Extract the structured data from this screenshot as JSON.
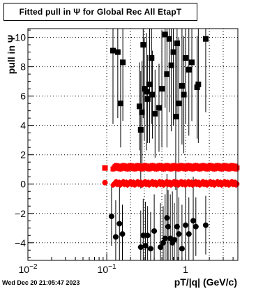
{
  "title": "Fitted pull in  Ψ  for Global Rec All EtapT",
  "xlabel": "pT/|q| (GeV/c)",
  "ylabel": "pull in  Ψ",
  "timestamp": "Wed Dec 20 21:05:47 2023",
  "chart_data": {
    "type": "scatter",
    "title": "Fitted pull in  Ψ  for Global Rec All EtapT",
    "xlabel": "pT/|q| (GeV/c)",
    "ylabel": "pull in  Ψ",
    "xscale": "log",
    "xlim": [
      0.01,
      4.6
    ],
    "ylim": [
      -5.2,
      10.6
    ],
    "xticks": [
      {
        "v": 0.01,
        "label": "10^-2"
      },
      {
        "v": 0.1,
        "label": "10^-1"
      },
      {
        "v": 1,
        "label": "1"
      }
    ],
    "yticks": [
      -4,
      -2,
      0,
      2,
      4,
      6,
      8,
      10
    ],
    "grid": true,
    "series": [
      {
        "marker": "square",
        "color": "#000000",
        "points": [
          [
            0.12,
            9.1,
            5.0
          ],
          [
            0.138,
            9.0,
            4.5
          ],
          [
            0.15,
            5.5,
            3.0
          ],
          [
            0.16,
            8.3,
            4.0
          ],
          [
            0.26,
            5.3,
            3.0
          ],
          [
            0.27,
            3.7,
            4.0
          ],
          [
            0.28,
            4.9,
            3.5
          ],
          [
            0.29,
            9.5,
            5.0
          ],
          [
            0.3,
            6.5,
            3.5
          ],
          [
            0.32,
            6.3,
            4.0
          ],
          [
            0.33,
            5.8,
            3.0
          ],
          [
            0.35,
            6.8,
            4.0
          ],
          [
            0.37,
            8.6,
            4.5
          ],
          [
            0.38,
            6.1,
            3.0
          ],
          [
            0.41,
            4.8,
            3.0
          ],
          [
            0.46,
            5.2,
            3.0
          ],
          [
            0.5,
            6.5,
            4.0
          ],
          [
            0.55,
            10.2,
            5.0
          ],
          [
            0.58,
            7.5,
            5.0
          ],
          [
            0.62,
            9.9,
            5.0
          ],
          [
            0.66,
            8.1,
            4.5
          ],
          [
            0.7,
            9.0,
            5.0
          ],
          [
            0.75,
            4.6,
            5.0
          ],
          [
            0.78,
            9.6,
            5.0
          ],
          [
            0.82,
            5.5,
            4.5
          ],
          [
            0.9,
            6.7,
            4.0
          ],
          [
            0.95,
            6.1,
            4.0
          ],
          [
            1.0,
            8.6,
            4.5
          ],
          [
            1.1,
            7.8,
            4.5
          ],
          [
            1.2,
            8.3,
            4.0
          ],
          [
            1.4,
            6.6,
            3.5
          ],
          [
            1.45,
            6.8,
            4.0
          ],
          [
            1.8,
            9.9,
            5.0
          ]
        ]
      },
      {
        "marker": "circle",
        "color": "#000000",
        "points": [
          [
            0.115,
            -2.2,
            2.0
          ],
          [
            0.13,
            -3.6,
            2.5
          ],
          [
            0.145,
            -2.7,
            2.5
          ],
          [
            0.158,
            -3.4,
            2.0
          ],
          [
            0.27,
            -4.3,
            2.5
          ],
          [
            0.29,
            -3.5,
            2.5
          ],
          [
            0.31,
            -4.2,
            3.0
          ],
          [
            0.33,
            -3.5,
            2.0
          ],
          [
            0.36,
            -4.4,
            2.5
          ],
          [
            0.4,
            -3.2,
            2.5
          ],
          [
            0.48,
            -4.3,
            3.0
          ],
          [
            0.52,
            -4.0,
            2.5
          ],
          [
            0.55,
            -3.7,
            3.0
          ],
          [
            0.58,
            -2.3,
            3.0
          ],
          [
            0.6,
            -2.9,
            2.5
          ],
          [
            0.64,
            -3.7,
            3.0
          ],
          [
            0.68,
            -4.0,
            3.5
          ],
          [
            0.72,
            -3.8,
            2.5
          ],
          [
            0.78,
            -2.9,
            3.0
          ],
          [
            0.82,
            -3.4,
            2.5
          ],
          [
            0.9,
            -4.4,
            3.0
          ],
          [
            1.0,
            -2.8,
            3.0
          ],
          [
            1.1,
            -3.4,
            2.5
          ],
          [
            1.25,
            -2.5,
            3.0
          ],
          [
            1.35,
            -2.9,
            2.0
          ],
          [
            1.8,
            -2.8,
            2.0
          ]
        ]
      },
      {
        "name": "",
        "marker": "square",
        "color": "#ff0000",
        "dense_range": [
          0.12,
          4.5
        ],
        "level": 1.15,
        "first_point": [
          0.095,
          1.1
        ]
      },
      {
        "name": "",
        "marker": "circle",
        "color": "#ff0000",
        "dense_range": [
          0.12,
          4.5
        ],
        "level": 0.05,
        "first_point": [
          0.095,
          0.1
        ]
      }
    ]
  }
}
